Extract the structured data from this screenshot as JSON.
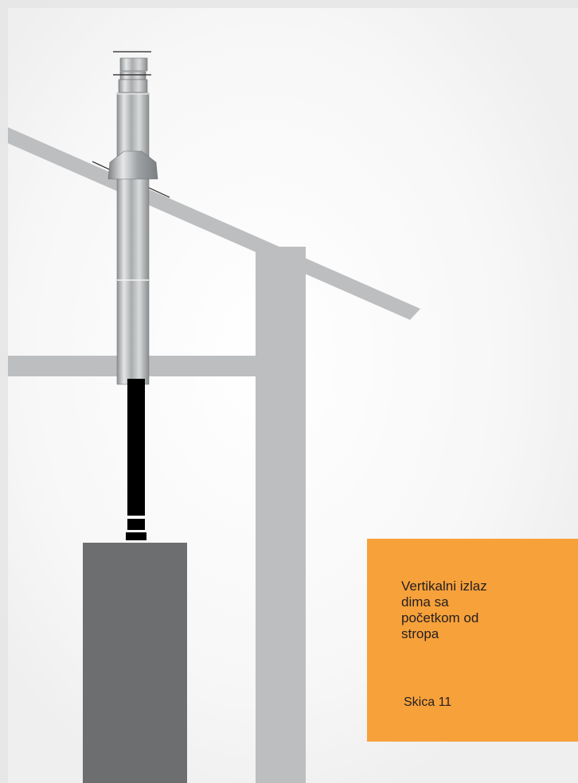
{
  "caption": {
    "title": "Vertikalni izlaz\ndima sa\npočetkom od\nstropa",
    "sketch_label": "Skica 11"
  },
  "colors": {
    "page_background": "#ffffff",
    "frame": "#e7e7e8",
    "structure": "#bcbec0",
    "stove": "#6d6e70",
    "flue_pipe": "#000000",
    "chimney_steel": "#c8cacc",
    "caption_box": "#f7a13b",
    "caption_text": "#231f20"
  }
}
